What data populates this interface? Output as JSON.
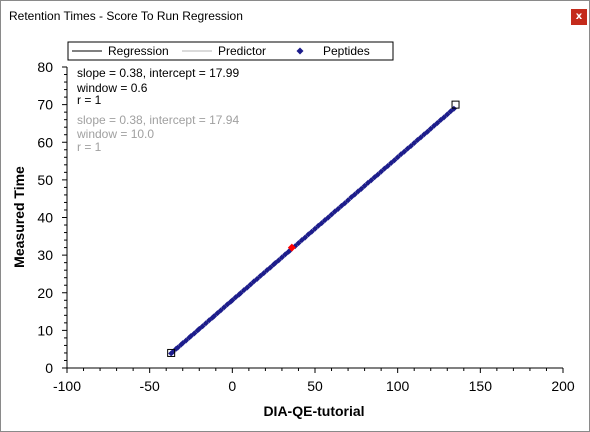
{
  "window": {
    "title": "Retention Times - Score To Run Regression",
    "close_label": "x"
  },
  "colors": {
    "close_button": "#c42b1c",
    "peptides": "#1c1c8c",
    "highlight": "#ff0000",
    "regression": "#000000",
    "predictor": "#b4b4b4",
    "secondary_text": "#a0a0a0"
  },
  "icons": {
    "close": "close-icon",
    "peptide_marker": "diamond-icon"
  },
  "chart_data": {
    "type": "scatter",
    "xlabel": "DIA-QE-tutorial",
    "ylabel": "Measured Time",
    "xlim": [
      -100,
      200
    ],
    "ylim": [
      0,
      80
    ],
    "xticks": [
      -100,
      -50,
      0,
      50,
      100,
      150,
      200
    ],
    "yticks": [
      0,
      10,
      20,
      30,
      40,
      50,
      60,
      70,
      80
    ],
    "grid": false,
    "legend_position": "top",
    "legend": [
      "Regression",
      "Predictor",
      "Peptides"
    ],
    "annotations": [
      {
        "text": "slope = 0.38, intercept = 17.99",
        "color": "#000000"
      },
      {
        "text": "window = 0.6",
        "color": "#000000"
      },
      {
        "text": "r = 1",
        "color": "#000000"
      },
      {
        "text": "slope = 0.38, intercept = 17.94",
        "color": "#a0a0a0"
      },
      {
        "text": "window = 10.0",
        "color": "#a0a0a0"
      },
      {
        "text": "r = 1",
        "color": "#a0a0a0"
      }
    ],
    "regression": {
      "slope": 0.38,
      "intercept": 17.99,
      "x_range": [
        -37,
        135
      ]
    },
    "predictor": {
      "slope": 0.38,
      "intercept": 17.94,
      "x_range": [
        -37,
        135
      ]
    },
    "series": [
      {
        "name": "Peptides",
        "marker": "diamond",
        "x": [
          -37,
          -36,
          -34,
          -33,
          -31,
          -30,
          -28,
          -26,
          -25,
          -23,
          -21,
          -20,
          -18,
          -16,
          -14,
          -12,
          -11,
          -9,
          -7,
          -5,
          -3,
          -1,
          0,
          2,
          4,
          5,
          7,
          9,
          11,
          13,
          15,
          17,
          19,
          21,
          23,
          25,
          26,
          28,
          30,
          32,
          34,
          35,
          38,
          40,
          42,
          44,
          46,
          48,
          50,
          52,
          54,
          56,
          58,
          60,
          62,
          64,
          66,
          68,
          70,
          72,
          74,
          76,
          78,
          80,
          82,
          84,
          86,
          88,
          90,
          92,
          94,
          96,
          98,
          100,
          102,
          104,
          106,
          108,
          110,
          112,
          114,
          116,
          118,
          120,
          122,
          124,
          126,
          128,
          130,
          132,
          134
        ],
        "y": [
          3.9,
          4.3,
          5.1,
          5.4,
          6.2,
          6.6,
          7.3,
          8.1,
          8.5,
          9.2,
          10.0,
          10.4,
          11.1,
          11.9,
          12.7,
          13.4,
          13.8,
          14.6,
          15.3,
          16.1,
          16.9,
          17.6,
          18.0,
          18.8,
          19.5,
          19.9,
          20.7,
          21.4,
          22.2,
          23.0,
          23.7,
          24.5,
          25.2,
          26.0,
          26.7,
          27.5,
          27.9,
          28.6,
          29.4,
          30.2,
          30.9,
          31.3,
          32.4,
          33.2,
          34.0,
          34.7,
          35.5,
          36.2,
          37.0,
          37.8,
          38.5,
          39.3,
          40.0,
          40.8,
          41.6,
          42.3,
          43.1,
          43.8,
          44.6,
          45.4,
          46.1,
          46.9,
          47.6,
          48.4,
          49.2,
          49.9,
          50.7,
          51.4,
          52.2,
          53.0,
          53.7,
          54.5,
          55.2,
          56.0,
          56.8,
          57.5,
          58.3,
          59.0,
          59.8,
          60.6,
          61.3,
          62.1,
          62.8,
          63.6,
          64.4,
          65.1,
          65.9,
          66.6,
          67.4,
          68.2,
          68.9
        ]
      }
    ],
    "highlighted_point": {
      "x": 36,
      "y": 32.0
    },
    "outlined_points": [
      {
        "x": -37,
        "y": 4.0
      },
      {
        "x": 135,
        "y": 70.0
      }
    ]
  }
}
